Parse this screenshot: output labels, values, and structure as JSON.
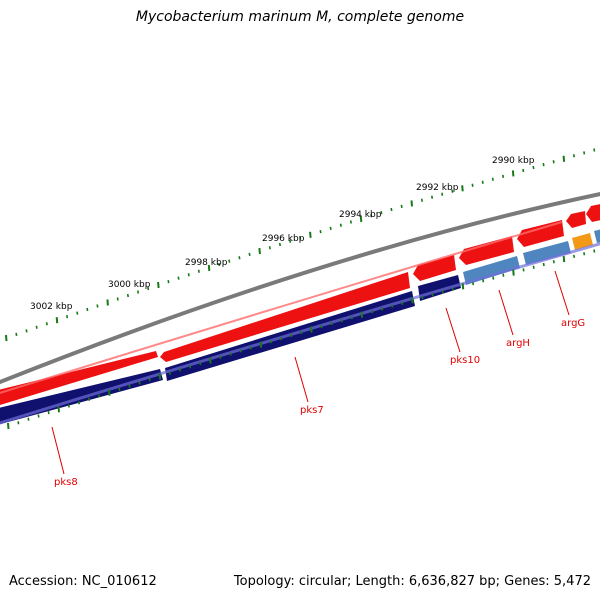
{
  "title": "Mycobacterium marinum M, complete genome",
  "footer": {
    "accession": "Accession: NC_010612",
    "summary": "Topology: circular; Length: 6,636,827 bp; Genes: 5,472"
  },
  "colors": {
    "forward_gene": "#ee1111",
    "reverse_gene_dark": "#10106e",
    "reverse_gene_light": "#4f86c0",
    "special_gene": "#f29a18",
    "backbone": "#7a7a7a",
    "tick": "#167a16",
    "label": "#e00000"
  },
  "scale": {
    "unit": "kbp",
    "labels": [
      {
        "kbp": 2990,
        "text": "2990 kbp"
      },
      {
        "kbp": 2992,
        "text": "2992 kbp"
      },
      {
        "kbp": 2994,
        "text": "2994 kbp"
      },
      {
        "kbp": 2996,
        "text": "2996 kbp"
      },
      {
        "kbp": 2998,
        "text": "2998 kbp"
      },
      {
        "kbp": 3000,
        "text": "3000 kbp"
      },
      {
        "kbp": 3002,
        "text": "3002 kbp"
      }
    ]
  },
  "gene_labels": [
    {
      "name": "pks8"
    },
    {
      "name": "pks7"
    },
    {
      "name": "pks10"
    },
    {
      "name": "argH"
    },
    {
      "name": "argG"
    }
  ]
}
